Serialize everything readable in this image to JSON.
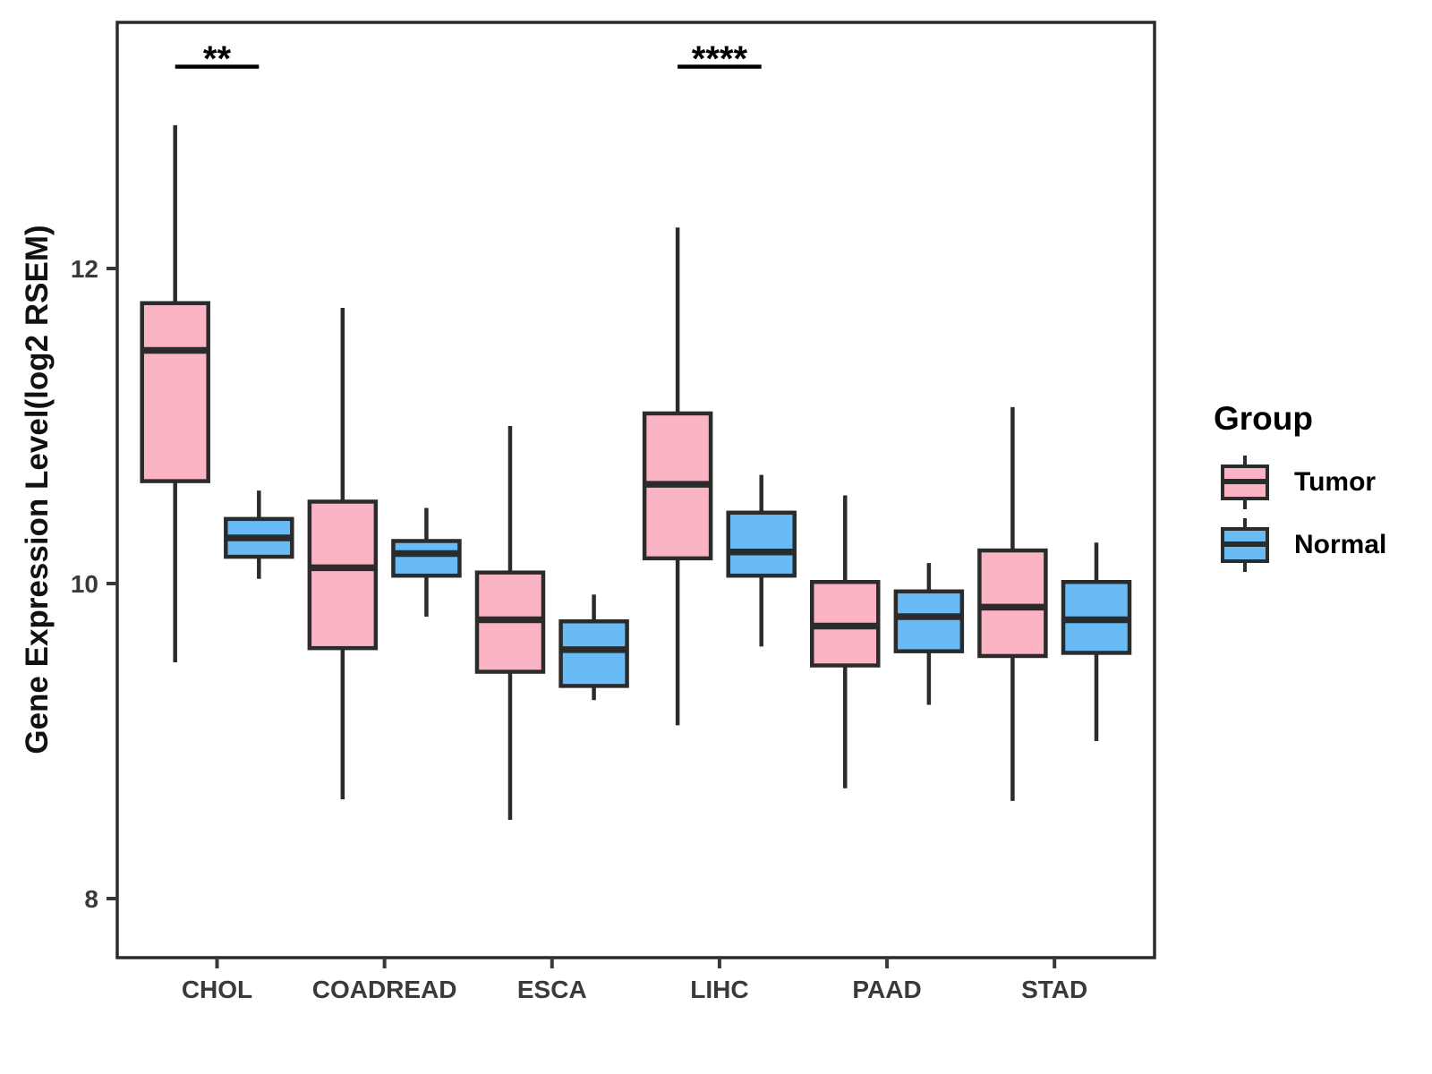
{
  "figure": {
    "y_axis": {
      "title": "Gene Expression Level(log2 RSEM)",
      "ticks": [
        "12",
        "10",
        "8"
      ]
    },
    "x_axis": {
      "categories": [
        "CHOL",
        "COADREAD",
        "ESCA",
        "LIHC",
        "PAAD",
        "STAD"
      ]
    }
  },
  "legend": {
    "title": "Group",
    "entries": [
      {
        "label": "Tumor",
        "color": "#FBB4C4"
      },
      {
        "label": "Normal",
        "color": "#68BBF5"
      }
    ]
  },
  "style_colors": {
    "box_stroke": "#2B2B2B",
    "axis_text": "#3A3A3A",
    "annotation": "#000000"
  },
  "chart_data": {
    "type": "boxplot",
    "title": "",
    "xlabel": "",
    "ylabel": "Gene Expression Level(log2 RSEM)",
    "categories": [
      "CHOL",
      "COADREAD",
      "ESCA",
      "LIHC",
      "PAAD",
      "STAD"
    ],
    "groups": [
      "Tumor",
      "Normal"
    ],
    "ylim": [
      7.6,
      13.6
    ],
    "yticks": [
      12,
      10,
      8
    ],
    "grid": false,
    "legend_position": "right",
    "series": [
      {
        "name": "Tumor",
        "color": "#FBB4C4",
        "stats": [
          {
            "category": "CHOL",
            "min": 9.5,
            "q1": 10.65,
            "median": 11.48,
            "q3": 11.78,
            "max": 12.91
          },
          {
            "category": "COADREAD",
            "min": 8.63,
            "q1": 9.59,
            "median": 10.1,
            "q3": 10.52,
            "max": 11.75
          },
          {
            "category": "ESCA",
            "min": 8.5,
            "q1": 9.44,
            "median": 9.77,
            "q3": 10.07,
            "max": 11.0
          },
          {
            "category": "LIHC",
            "min": 9.1,
            "q1": 10.16,
            "median": 10.63,
            "q3": 11.08,
            "max": 12.26
          },
          {
            "category": "PAAD",
            "min": 8.7,
            "q1": 9.48,
            "median": 9.73,
            "q3": 10.01,
            "max": 10.56
          },
          {
            "category": "STAD",
            "min": 8.62,
            "q1": 9.54,
            "median": 9.85,
            "q3": 10.21,
            "max": 11.12
          }
        ]
      },
      {
        "name": "Normal",
        "color": "#68BBF5",
        "stats": [
          {
            "category": "CHOL",
            "min": 10.03,
            "q1": 10.17,
            "median": 10.29,
            "q3": 10.41,
            "max": 10.59
          },
          {
            "category": "COADREAD",
            "min": 9.79,
            "q1": 10.05,
            "median": 10.19,
            "q3": 10.27,
            "max": 10.48
          },
          {
            "category": "ESCA",
            "min": 9.26,
            "q1": 9.35,
            "median": 9.58,
            "q3": 9.76,
            "max": 9.93
          },
          {
            "category": "LIHC",
            "min": 9.6,
            "q1": 10.05,
            "median": 10.2,
            "q3": 10.45,
            "max": 10.69
          },
          {
            "category": "PAAD",
            "min": 9.23,
            "q1": 9.57,
            "median": 9.79,
            "q3": 9.95,
            "max": 10.13
          },
          {
            "category": "STAD",
            "min": 9.0,
            "q1": 9.56,
            "median": 9.77,
            "q3": 10.01,
            "max": 10.26
          }
        ]
      }
    ],
    "annotations": [
      {
        "category": "CHOL",
        "label": "**"
      },
      {
        "category": "LIHC",
        "label": "****"
      }
    ]
  }
}
